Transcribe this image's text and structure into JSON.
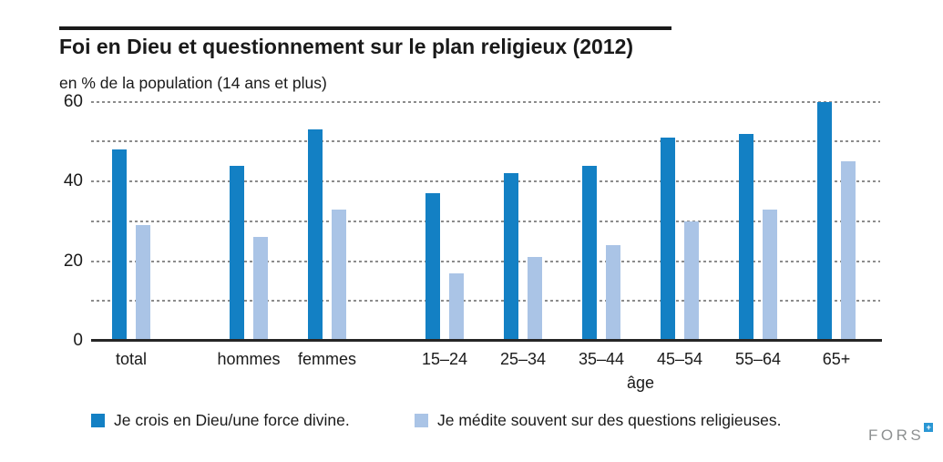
{
  "header": {
    "title": "Foi en Dieu et questionnement sur le plan religieux (2012)",
    "subtitle": "en % de la population (14 ans et plus)"
  },
  "chart_data": {
    "type": "bar",
    "categories": [
      "total",
      "hommes",
      "femmes",
      "15–24",
      "25–34",
      "35–44",
      "45–54",
      "55–64",
      "65+"
    ],
    "series": [
      {
        "name": "Je crois en Dieu/une force divine.",
        "color": "#1380c4",
        "values": [
          48,
          44,
          53,
          37,
          42,
          44,
          51,
          52,
          60
        ]
      },
      {
        "name": "Je médite souvent sur des questions religieuses.",
        "color": "#aac4e6",
        "values": [
          29,
          26,
          33,
          17,
          21,
          24,
          30,
          33,
          45
        ]
      }
    ],
    "xlabel": "âge",
    "ylabel": "en % de la population (14 ans et plus)",
    "ylim": [
      0,
      60
    ],
    "yticks": [
      0,
      20,
      40,
      60
    ],
    "gridline_step": 10,
    "grid": true,
    "legend_position": "bottom"
  },
  "footer": {
    "logo_text": "FORS",
    "logo_mark": "+"
  }
}
